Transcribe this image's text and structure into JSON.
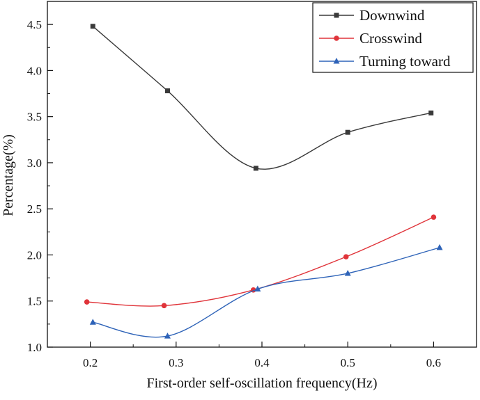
{
  "chart_data": {
    "type": "line",
    "title": "",
    "xlabel": "First-order self-oscillation frequency(Hz)",
    "ylabel": "Percentage(%)",
    "xlim": [
      0.15,
      0.65
    ],
    "ylim": [
      1.0,
      4.75
    ],
    "xticks": [
      0.2,
      0.3,
      0.4,
      0.5,
      0.6
    ],
    "xtick_labels": [
      "0.2",
      "0.3",
      "0.4",
      "0.5",
      "0.6"
    ],
    "yticks": [
      1.0,
      1.5,
      2.0,
      2.5,
      3.0,
      3.5,
      4.0,
      4.5
    ],
    "ytick_labels": [
      "1.0",
      "1.5",
      "2.0",
      "2.5",
      "3.0",
      "3.5",
      "4.0",
      "4.5"
    ],
    "grid": false,
    "legend_position": "top-right",
    "series": [
      {
        "name": "Downwind",
        "color": "#3a3a3a",
        "marker": "square",
        "x": [
          0.203,
          0.29,
          0.393,
          0.5,
          0.597
        ],
        "y": [
          4.48,
          3.78,
          2.94,
          3.33,
          3.54
        ]
      },
      {
        "name": "Crosswind",
        "color": "#e0343a",
        "marker": "circle",
        "x": [
          0.196,
          0.286,
          0.39,
          0.498,
          0.6
        ],
        "y": [
          1.49,
          1.45,
          1.62,
          1.98,
          2.41
        ]
      },
      {
        "name": "Turning toward",
        "color": "#2e63b8",
        "marker": "triangle",
        "x": [
          0.203,
          0.29,
          0.395,
          0.5,
          0.607
        ],
        "y": [
          1.27,
          1.12,
          1.63,
          1.8,
          2.08
        ]
      }
    ]
  }
}
